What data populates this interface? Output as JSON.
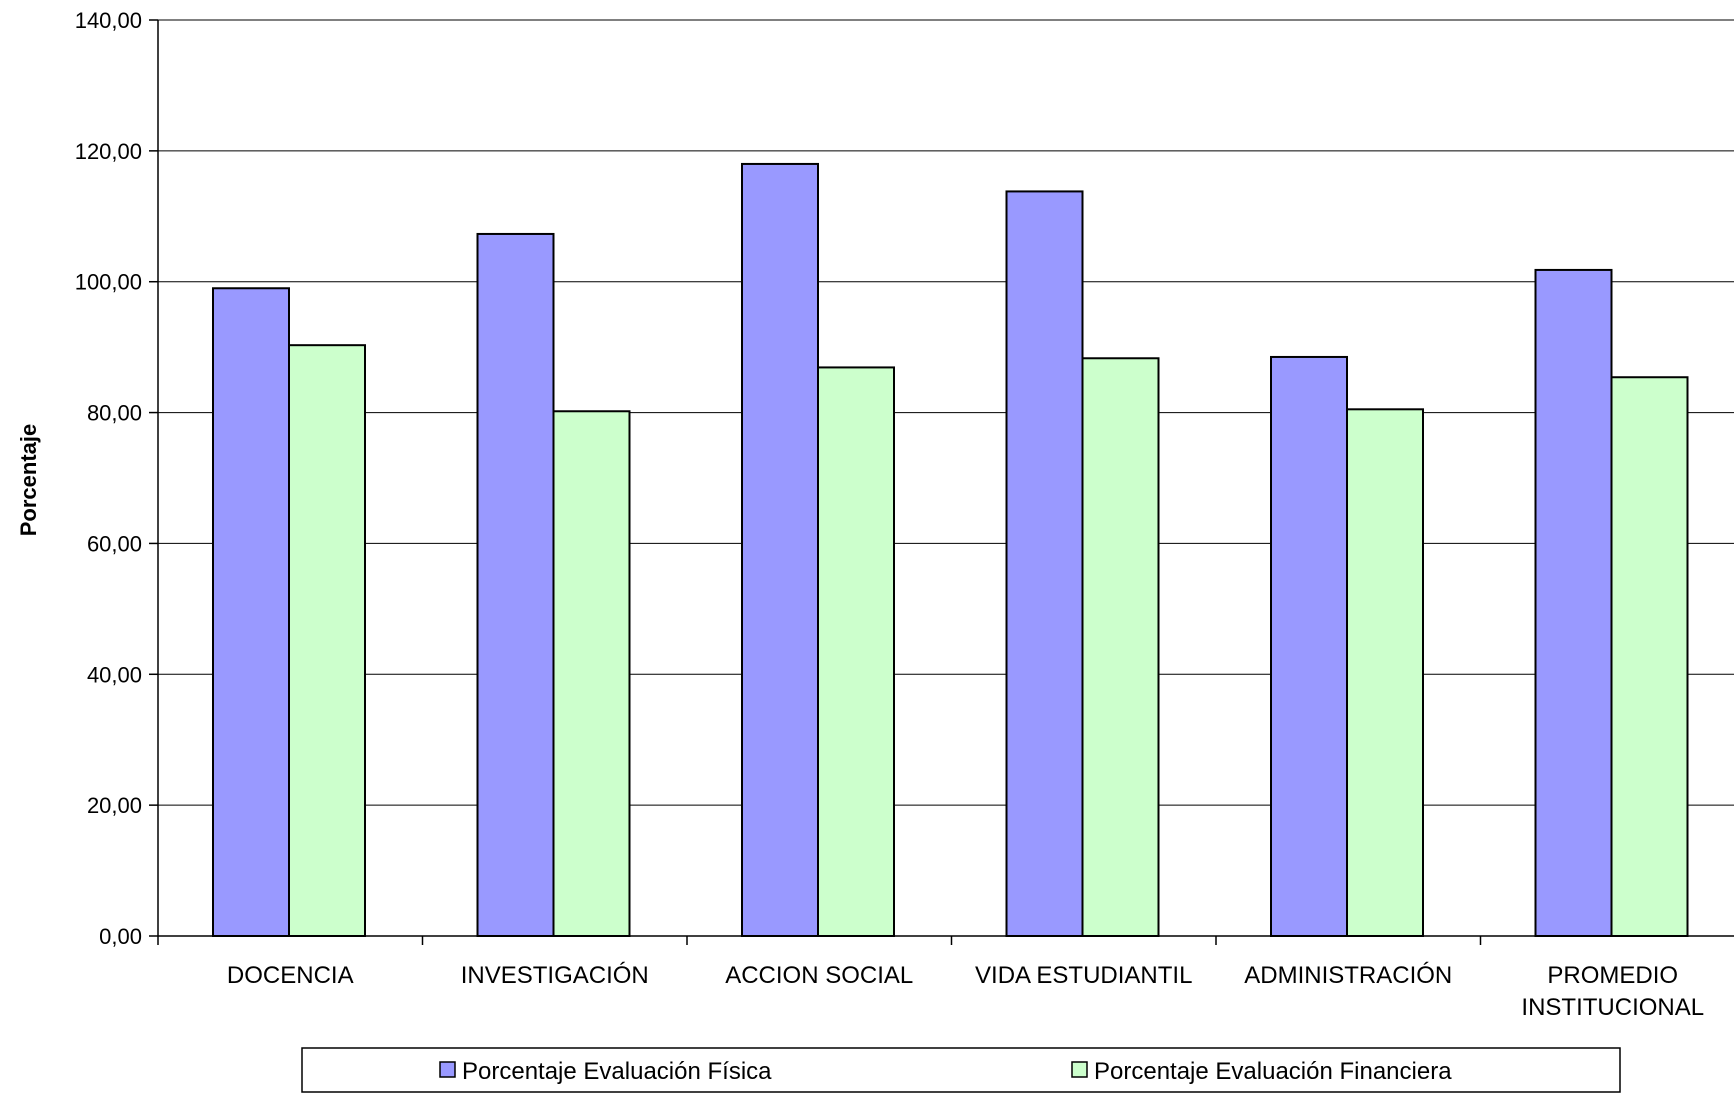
{
  "chart_data": {
    "type": "bar",
    "title": "",
    "xlabel": "",
    "ylabel": "Porcentaje",
    "ylim": [
      0,
      140
    ],
    "yticks": [
      "0,00",
      "20,00",
      "40,00",
      "60,00",
      "80,00",
      "100,00",
      "120,00",
      "140,00"
    ],
    "grid": true,
    "legend_position": "bottom",
    "categories": [
      [
        "DOCENCIA"
      ],
      [
        "INVESTIGACIÓN"
      ],
      [
        "ACCION SOCIAL"
      ],
      [
        "VIDA ESTUDIANTIL"
      ],
      [
        "ADMINISTRACIÓN"
      ],
      [
        "PROMEDIO",
        "INSTITUCIONAL"
      ]
    ],
    "series": [
      {
        "name": "Porcentaje Evaluación Física",
        "color": "#9999ff",
        "values": [
          99.0,
          107.3,
          118.0,
          113.8,
          88.5,
          101.8
        ]
      },
      {
        "name": "Porcentaje Evaluación Financiera",
        "color": "#ccffcc",
        "values": [
          90.3,
          80.2,
          86.9,
          88.3,
          80.5,
          85.4
        ]
      }
    ]
  }
}
